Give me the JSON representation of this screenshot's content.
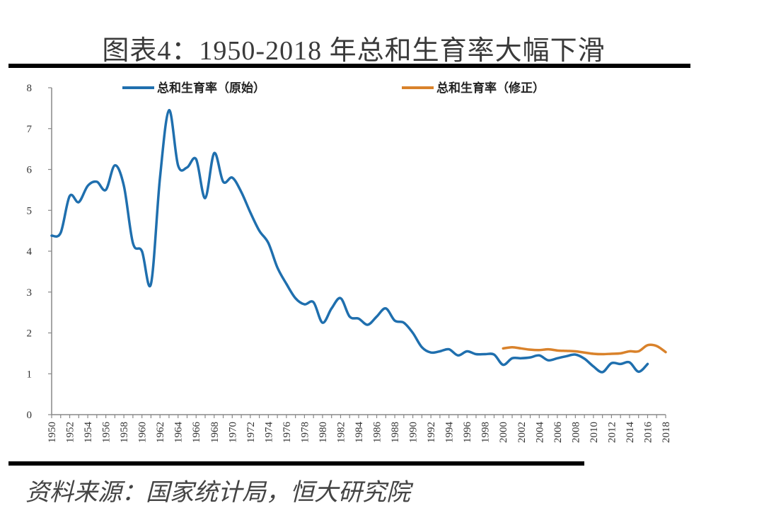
{
  "title": "图表4：1950-2018 年总和生育率大幅下滑",
  "source": "资料来源：国家统计局，恒大研究院",
  "chart_data": {
    "type": "line",
    "title": "图表4：1950-2018 年总和生育率大幅下滑",
    "xlabel": "",
    "ylabel": "",
    "xlim": [
      1950,
      2018
    ],
    "ylim": [
      0,
      8
    ],
    "yticks": [
      0,
      1,
      2,
      3,
      4,
      5,
      6,
      7,
      8
    ],
    "xtick_labels": [
      "1950",
      "1952",
      "1954",
      "1956",
      "1958",
      "1960",
      "1962",
      "1964",
      "1966",
      "1968",
      "1970",
      "1972",
      "1974",
      "1976",
      "1978",
      "1980",
      "1982",
      "1984",
      "1986",
      "1988",
      "1990",
      "1992",
      "1994",
      "1996",
      "1998",
      "2000",
      "2002",
      "2004",
      "2006",
      "2008",
      "2010",
      "2012",
      "2014",
      "2016",
      "2018"
    ],
    "grid": false,
    "legend_placement": "top",
    "series": [
      {
        "name": "总和生育率（原始）",
        "color": "#1f6fae",
        "x": [
          1950,
          1951,
          1952,
          1953,
          1954,
          1955,
          1956,
          1957,
          1958,
          1959,
          1960,
          1961,
          1962,
          1963,
          1964,
          1965,
          1966,
          1967,
          1968,
          1969,
          1970,
          1971,
          1972,
          1973,
          1974,
          1975,
          1976,
          1977,
          1978,
          1979,
          1980,
          1981,
          1982,
          1983,
          1984,
          1985,
          1986,
          1987,
          1988,
          1989,
          1990,
          1991,
          1992,
          1993,
          1994,
          1995,
          1996,
          1997,
          1998,
          1999,
          2000,
          2001,
          2002,
          2003,
          2004,
          2005,
          2006,
          2007,
          2008,
          2009,
          2010,
          2011,
          2012,
          2013,
          2014,
          2015,
          2016
        ],
        "values": [
          4.38,
          4.45,
          5.35,
          5.2,
          5.6,
          5.7,
          5.5,
          6.1,
          5.6,
          4.2,
          4.0,
          3.2,
          5.8,
          7.45,
          6.1,
          6.05,
          6.25,
          5.3,
          6.4,
          5.7,
          5.8,
          5.45,
          4.95,
          4.5,
          4.2,
          3.6,
          3.2,
          2.85,
          2.7,
          2.75,
          2.25,
          2.6,
          2.85,
          2.4,
          2.35,
          2.2,
          2.4,
          2.6,
          2.3,
          2.25,
          2.0,
          1.65,
          1.52,
          1.55,
          1.6,
          1.45,
          1.55,
          1.48,
          1.48,
          1.47,
          1.22,
          1.38,
          1.38,
          1.4,
          1.45,
          1.33,
          1.38,
          1.43,
          1.47,
          1.37,
          1.18,
          1.04,
          1.26,
          1.24,
          1.28,
          1.05,
          1.24
        ]
      },
      {
        "name": "总和生育率（修正）",
        "color": "#d9822b",
        "x": [
          2000,
          2001,
          2002,
          2003,
          2004,
          2005,
          2006,
          2007,
          2008,
          2009,
          2010,
          2011,
          2012,
          2013,
          2014,
          2015,
          2016,
          2017,
          2018
        ],
        "values": [
          1.62,
          1.65,
          1.62,
          1.59,
          1.58,
          1.6,
          1.57,
          1.56,
          1.55,
          1.52,
          1.49,
          1.48,
          1.49,
          1.5,
          1.55,
          1.55,
          1.7,
          1.68,
          1.53
        ]
      }
    ]
  }
}
